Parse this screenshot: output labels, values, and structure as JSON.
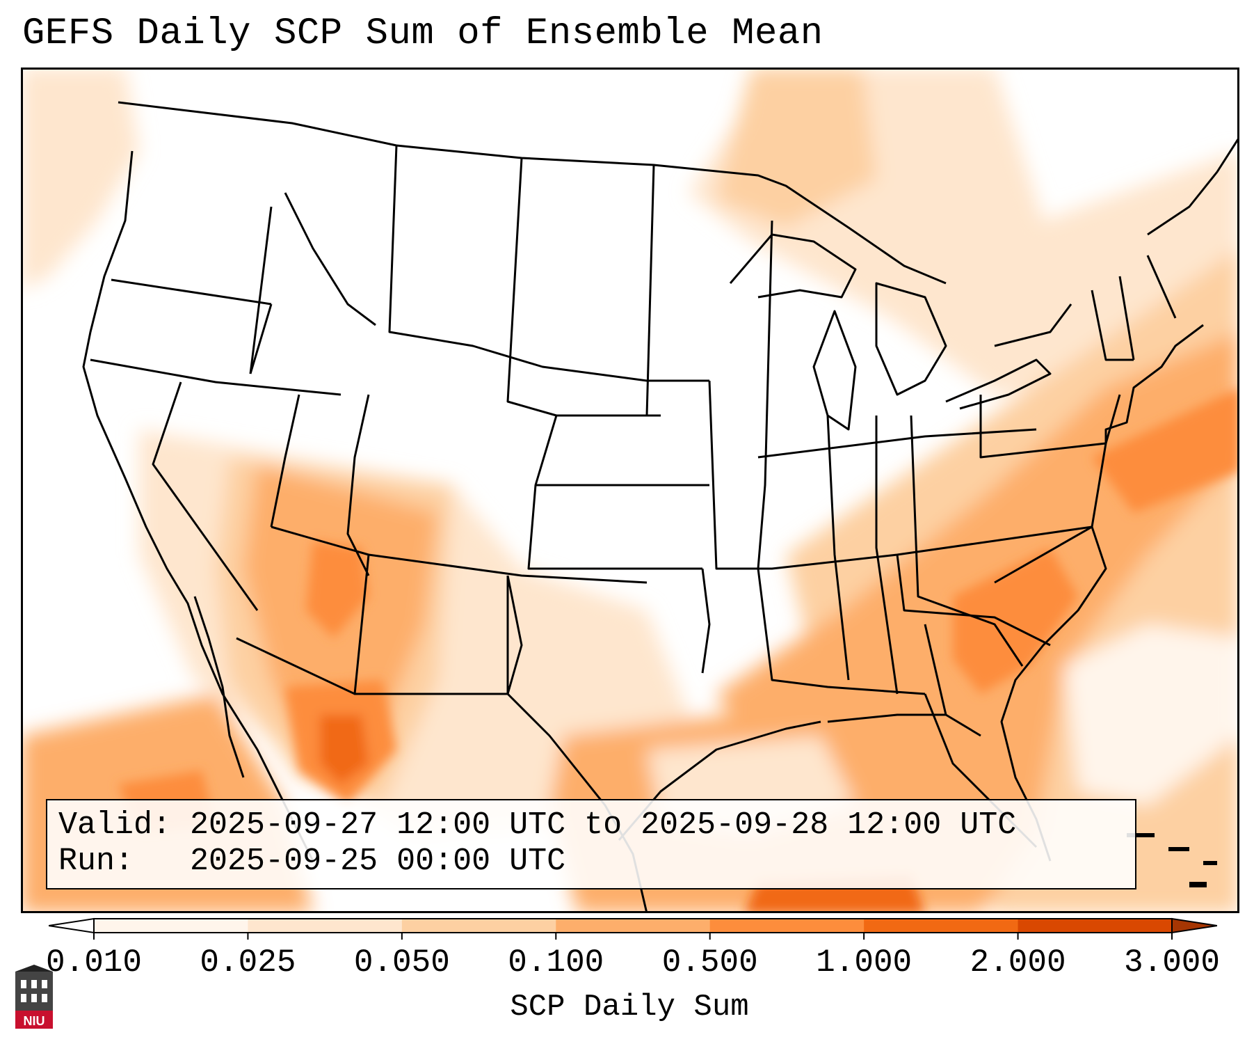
{
  "title": "GEFS Daily SCP Sum of Ensemble Mean",
  "info": {
    "valid_label": "Valid:",
    "valid_value": "2025-09-27 12:00 UTC to 2025-09-28 12:00 UTC",
    "run_label": "Run:",
    "run_value": "2025-09-25 00:00 UTC"
  },
  "colorbar": {
    "label": "SCP Daily Sum",
    "ticks": [
      "0.010",
      "0.025",
      "0.050",
      "0.100",
      "0.500",
      "1.000",
      "2.000",
      "3.000"
    ],
    "colors": [
      "#fff5eb",
      "#fee6ce",
      "#fdd0a2",
      "#fdae6b",
      "#fd8d3c",
      "#f16913",
      "#d94801",
      "#a63603"
    ],
    "extend": "both"
  },
  "logo": {
    "text": "NIU",
    "color": "#c8102e"
  },
  "map": {
    "region": "Contiguous United States, northern Mexico, Gulf of Mexico, western Atlantic",
    "highlights": [
      "peak SCP over northern Mexico (Chihuahua/Sonora)",
      "elevated SCP over Arizona and New Mexico",
      "elevated SCP over the Carolinas, Georgia and Florida",
      "elevated SCP across the western Atlantic and Gulf of Mexico"
    ]
  }
}
